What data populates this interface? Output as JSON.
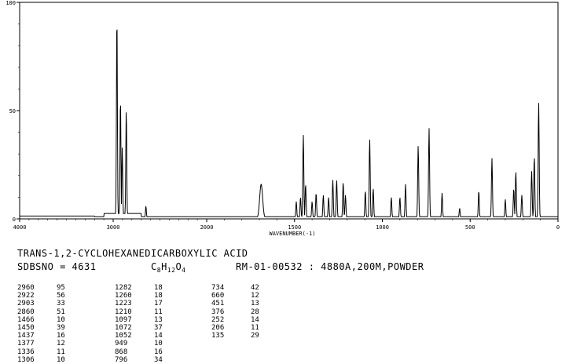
{
  "chart_data": {
    "type": "line",
    "title": "TRANS-1,2-CYCLOHEXANEDICARBOXYLIC ACID",
    "xlabel": "WAVENUMBER(-1)",
    "ylabel": "",
    "xlim": [
      4000,
      0
    ],
    "ylim": [
      0,
      100
    ],
    "x_ticks": [
      "4000",
      "3000",
      "2000",
      "1500",
      "1000",
      "500",
      "0"
    ],
    "y_ticks": [
      "0",
      "50",
      "100"
    ],
    "grid": false,
    "peaks": [
      {
        "x": 2960,
        "y": 95
      },
      {
        "x": 2922,
        "y": 56
      },
      {
        "x": 2903,
        "y": 33
      },
      {
        "x": 2860,
        "y": 51
      },
      {
        "x": 1466,
        "y": 10
      },
      {
        "x": 1450,
        "y": 39
      },
      {
        "x": 1437,
        "y": 16
      },
      {
        "x": 1377,
        "y": 12
      },
      {
        "x": 1336,
        "y": 11
      },
      {
        "x": 1306,
        "y": 10
      },
      {
        "x": 1282,
        "y": 18
      },
      {
        "x": 1260,
        "y": 18
      },
      {
        "x": 1223,
        "y": 17
      },
      {
        "x": 1210,
        "y": 11
      },
      {
        "x": 1097,
        "y": 13
      },
      {
        "x": 1072,
        "y": 37
      },
      {
        "x": 1052,
        "y": 14
      },
      {
        "x": 949,
        "y": 10
      },
      {
        "x": 868,
        "y": 16
      },
      {
        "x": 796,
        "y": 34
      },
      {
        "x": 734,
        "y": 42
      },
      {
        "x": 660,
        "y": 12
      },
      {
        "x": 451,
        "y": 13
      },
      {
        "x": 376,
        "y": 28
      },
      {
        "x": 252,
        "y": 14
      },
      {
        "x": 206,
        "y": 11
      },
      {
        "x": 135,
        "y": 29
      }
    ],
    "extra_bands": [
      {
        "x": 2650,
        "y": 6
      },
      {
        "x": 1690,
        "y": 16
      },
      {
        "x": 1490,
        "y": 8
      },
      {
        "x": 1400,
        "y": 8
      },
      {
        "x": 900,
        "y": 10
      },
      {
        "x": 560,
        "y": 5
      },
      {
        "x": 300,
        "y": 9
      },
      {
        "x": 240,
        "y": 22
      },
      {
        "x": 150,
        "y": 22
      },
      {
        "x": 110,
        "y": 54
      }
    ]
  },
  "compound": {
    "name": "TRANS-1,2-CYCLOHEXANEDICARBOXYLIC ACID",
    "sdbs": "SDBSNO = 4631",
    "formula_c": "C",
    "formula_c_n": "8",
    "formula_h": "H",
    "formula_h_n": "12",
    "formula_o": "O",
    "formula_o_n": "4",
    "rm": "RM-01-00532 : 4880A,200M,POWDER"
  },
  "peak_table": {
    "col1": [
      [
        "2960",
        "95"
      ],
      [
        "2922",
        "56"
      ],
      [
        "2903",
        "33"
      ],
      [
        "2860",
        "51"
      ],
      [
        "1466",
        "10"
      ],
      [
        "1450",
        "39"
      ],
      [
        "1437",
        "16"
      ],
      [
        "1377",
        "12"
      ],
      [
        "1336",
        "11"
      ],
      [
        "1306",
        "10"
      ]
    ],
    "col2": [
      [
        "1282",
        "18"
      ],
      [
        "1260",
        "18"
      ],
      [
        "1223",
        "17"
      ],
      [
        "1210",
        "11"
      ],
      [
        "1097",
        "13"
      ],
      [
        "1072",
        "37"
      ],
      [
        "1052",
        "14"
      ],
      [
        "949",
        "10"
      ],
      [
        "868",
        "16"
      ],
      [
        "796",
        "34"
      ]
    ],
    "col3": [
      [
        "734",
        "42"
      ],
      [
        "660",
        "12"
      ],
      [
        "451",
        "13"
      ],
      [
        "376",
        "28"
      ],
      [
        "252",
        "14"
      ],
      [
        "206",
        "11"
      ],
      [
        "135",
        "29"
      ]
    ]
  }
}
